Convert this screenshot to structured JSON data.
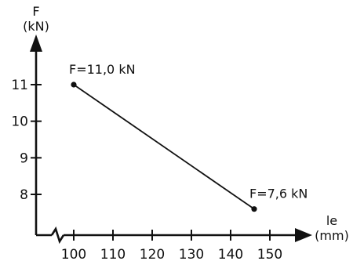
{
  "chart_data": {
    "type": "line",
    "title": "",
    "xlabel": "le",
    "xunit": "(mm)",
    "ylabel": "F",
    "yunit": "(kN)",
    "xlim": [
      100,
      150
    ],
    "ylim": [
      8,
      11
    ],
    "x_axis_break": true,
    "grid": false,
    "x_ticks": [
      100,
      110,
      120,
      130,
      140,
      150
    ],
    "y_ticks": [
      8,
      9,
      10,
      11
    ],
    "series": [
      {
        "x": [
          100,
          146
        ],
        "y": [
          11.0,
          7.6
        ],
        "point_labels": [
          "F=11,0 kN",
          "F=7,6 kN"
        ]
      }
    ]
  }
}
